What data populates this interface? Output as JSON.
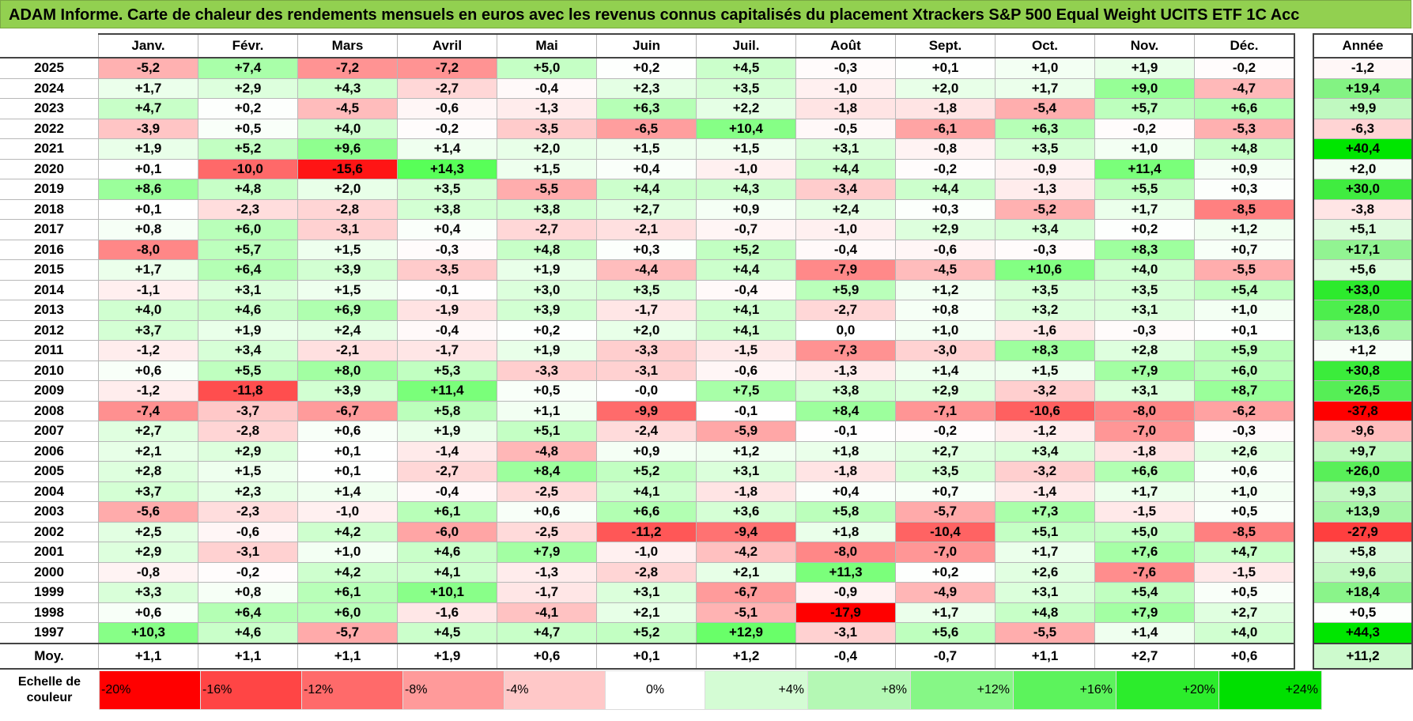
{
  "chart_data": {
    "type": "heatmap",
    "title": "ADAM Informe. Carte de chaleur des rendements mensuels en euros avec les revenus connus capitalisés du placement Xtrackers S&P 500 Equal Weight UCITS ETF 1C Acc",
    "months": [
      "Janv.",
      "Févr.",
      "Mars",
      "Avril",
      "Mai",
      "Juin",
      "Juil.",
      "Août",
      "Sept.",
      "Oct.",
      "Nov.",
      "Déc."
    ],
    "annual_label": "Année",
    "rows": [
      {
        "year": "2025",
        "values": [
          "-5,2",
          "+7,4",
          "-7,2",
          "-7,2",
          "+5,0",
          "+0,2",
          "+4,5",
          "-0,3",
          "+0,1",
          "+1,0",
          "+1,9",
          "-0,2"
        ],
        "annual": "-1,2"
      },
      {
        "year": "2024",
        "values": [
          "+1,7",
          "+2,9",
          "+4,3",
          "-2,7",
          "-0,4",
          "+2,3",
          "+3,5",
          "-1,0",
          "+2,0",
          "+1,7",
          "+9,0",
          "-4,7"
        ],
        "annual": "+19,4"
      },
      {
        "year": "2023",
        "values": [
          "+4,7",
          "+0,2",
          "-4,5",
          "-0,6",
          "-1,3",
          "+6,3",
          "+2,2",
          "-1,8",
          "-1,8",
          "-5,4",
          "+5,7",
          "+6,6"
        ],
        "annual": "+9,9"
      },
      {
        "year": "2022",
        "values": [
          "-3,9",
          "+0,5",
          "+4,0",
          "-0,2",
          "-3,5",
          "-6,5",
          "+10,4",
          "-0,5",
          "-6,1",
          "+6,3",
          "-0,2",
          "-5,3"
        ],
        "annual": "-6,3"
      },
      {
        "year": "2021",
        "values": [
          "+1,9",
          "+5,2",
          "+9,6",
          "+1,4",
          "+2,0",
          "+1,5",
          "+1,5",
          "+3,1",
          "-0,8",
          "+3,5",
          "+1,0",
          "+4,8"
        ],
        "annual": "+40,4"
      },
      {
        "year": "2020",
        "values": [
          "+0,1",
          "-10,0",
          "-15,6",
          "+14,3",
          "+1,5",
          "+0,4",
          "-1,0",
          "+4,4",
          "-0,2",
          "-0,9",
          "+11,4",
          "+0,9"
        ],
        "annual": "+2,0"
      },
      {
        "year": "2019",
        "values": [
          "+8,6",
          "+4,8",
          "+2,0",
          "+3,5",
          "-5,5",
          "+4,4",
          "+4,3",
          "-3,4",
          "+4,4",
          "-1,3",
          "+5,5",
          "+0,3"
        ],
        "annual": "+30,0"
      },
      {
        "year": "2018",
        "values": [
          "+0,1",
          "-2,3",
          "-2,8",
          "+3,8",
          "+3,8",
          "+2,7",
          "+0,9",
          "+2,4",
          "+0,3",
          "-5,2",
          "+1,7",
          "-8,5"
        ],
        "annual": "-3,8"
      },
      {
        "year": "2017",
        "values": [
          "+0,8",
          "+6,0",
          "-3,1",
          "+0,4",
          "-2,7",
          "-2,1",
          "-0,7",
          "-1,0",
          "+2,9",
          "+3,4",
          "+0,2",
          "+1,2"
        ],
        "annual": "+5,1"
      },
      {
        "year": "2016",
        "values": [
          "-8,0",
          "+5,7",
          "+1,5",
          "-0,3",
          "+4,8",
          "+0,3",
          "+5,2",
          "-0,4",
          "-0,6",
          "-0,3",
          "+8,3",
          "+0,7"
        ],
        "annual": "+17,1"
      },
      {
        "year": "2015",
        "values": [
          "+1,7",
          "+6,4",
          "+3,9",
          "-3,5",
          "+1,9",
          "-4,4",
          "+4,4",
          "-7,9",
          "-4,5",
          "+10,6",
          "+4,0",
          "-5,5"
        ],
        "annual": "+5,6"
      },
      {
        "year": "2014",
        "values": [
          "-1,1",
          "+3,1",
          "+1,5",
          "-0,1",
          "+3,0",
          "+3,5",
          "-0,4",
          "+5,9",
          "+1,2",
          "+3,5",
          "+3,5",
          "+5,4"
        ],
        "annual": "+33,0"
      },
      {
        "year": "2013",
        "values": [
          "+4,0",
          "+4,6",
          "+6,9",
          "-1,9",
          "+3,9",
          "-1,7",
          "+4,1",
          "-2,7",
          "+0,8",
          "+3,2",
          "+3,1",
          "+1,0"
        ],
        "annual": "+28,0"
      },
      {
        "year": "2012",
        "values": [
          "+3,7",
          "+1,9",
          "+2,4",
          "-0,4",
          "+0,2",
          "+2,0",
          "+4,1",
          "0,0",
          "+1,0",
          "-1,6",
          "-0,3",
          "+0,1"
        ],
        "annual": "+13,6"
      },
      {
        "year": "2011",
        "values": [
          "-1,2",
          "+3,4",
          "-2,1",
          "-1,7",
          "+1,9",
          "-3,3",
          "-1,5",
          "-7,3",
          "-3,0",
          "+8,3",
          "+2,8",
          "+5,9"
        ],
        "annual": "+1,2"
      },
      {
        "year": "2010",
        "values": [
          "+0,6",
          "+5,5",
          "+8,0",
          "+5,3",
          "-3,3",
          "-3,1",
          "-0,6",
          "-1,3",
          "+1,4",
          "+1,5",
          "+7,9",
          "+6,0"
        ],
        "annual": "+30,8"
      },
      {
        "year": "2009",
        "values": [
          "-1,2",
          "-11,8",
          "+3,9",
          "+11,4",
          "+0,5",
          "-0,0",
          "+7,5",
          "+3,8",
          "+2,9",
          "-3,2",
          "+3,1",
          "+8,7"
        ],
        "annual": "+26,5"
      },
      {
        "year": "2008",
        "values": [
          "-7,4",
          "-3,7",
          "-6,7",
          "+5,8",
          "+1,1",
          "-9,9",
          "-0,1",
          "+8,4",
          "-7,1",
          "-10,6",
          "-8,0",
          "-6,2"
        ],
        "annual": "-37,8"
      },
      {
        "year": "2007",
        "values": [
          "+2,7",
          "-2,8",
          "+0,6",
          "+1,9",
          "+5,1",
          "-2,4",
          "-5,9",
          "-0,1",
          "-0,2",
          "-1,2",
          "-7,0",
          "-0,3"
        ],
        "annual": "-9,6"
      },
      {
        "year": "2006",
        "values": [
          "+2,1",
          "+2,9",
          "+0,1",
          "-1,4",
          "-4,8",
          "+0,9",
          "+1,2",
          "+1,8",
          "+2,7",
          "+3,4",
          "-1,8",
          "+2,6"
        ],
        "annual": "+9,7"
      },
      {
        "year": "2005",
        "values": [
          "+2,8",
          "+1,5",
          "+0,1",
          "-2,7",
          "+8,4",
          "+5,2",
          "+3,1",
          "-1,8",
          "+3,5",
          "-3,2",
          "+6,6",
          "+0,6"
        ],
        "annual": "+26,0"
      },
      {
        "year": "2004",
        "values": [
          "+3,7",
          "+2,3",
          "+1,4",
          "-0,4",
          "-2,5",
          "+4,1",
          "-1,8",
          "+0,4",
          "+0,7",
          "-1,4",
          "+1,7",
          "+1,0"
        ],
        "annual": "+9,3"
      },
      {
        "year": "2003",
        "values": [
          "-5,6",
          "-2,3",
          "-1,0",
          "+6,1",
          "+0,6",
          "+6,6",
          "+3,6",
          "+5,8",
          "-5,7",
          "+7,3",
          "-1,5",
          "+0,5"
        ],
        "annual": "+13,9"
      },
      {
        "year": "2002",
        "values": [
          "+2,5",
          "-0,6",
          "+4,2",
          "-6,0",
          "-2,5",
          "-11,2",
          "-9,4",
          "+1,8",
          "-10,4",
          "+5,1",
          "+5,0",
          "-8,5"
        ],
        "annual": "-27,9"
      },
      {
        "year": "2001",
        "values": [
          "+2,9",
          "-3,1",
          "+1,0",
          "+4,6",
          "+7,9",
          "-1,0",
          "-4,2",
          "-8,0",
          "-7,0",
          "+1,7",
          "+7,6",
          "+4,7"
        ],
        "annual": "+5,8"
      },
      {
        "year": "2000",
        "values": [
          "-0,8",
          "-0,2",
          "+4,2",
          "+4,1",
          "-1,3",
          "-2,8",
          "+2,1",
          "+11,3",
          "+0,2",
          "+2,6",
          "-7,6",
          "-1,5"
        ],
        "annual": "+9,6"
      },
      {
        "year": "1999",
        "values": [
          "+3,3",
          "+0,8",
          "+6,1",
          "+10,1",
          "-1,7",
          "+3,1",
          "-6,7",
          "-0,9",
          "-4,9",
          "+3,1",
          "+5,4",
          "+0,5"
        ],
        "annual": "+18,4"
      },
      {
        "year": "1998",
        "values": [
          "+0,6",
          "+6,4",
          "+6,0",
          "-1,6",
          "-4,1",
          "+2,1",
          "-5,1",
          "-17,9",
          "+1,7",
          "+4,8",
          "+7,9",
          "+2,7"
        ],
        "annual": "+0,5"
      },
      {
        "year": "1997",
        "values": [
          "+10,3",
          "+4,6",
          "-5,7",
          "+4,5",
          "+4,7",
          "+5,2",
          "+12,9",
          "-3,1",
          "+5,6",
          "-5,5",
          "+1,4",
          "+4,0"
        ],
        "annual": "+44,3"
      }
    ],
    "average": {
      "label": "Moy.",
      "values": [
        "+1,1",
        "+1,1",
        "+1,1",
        "+1,9",
        "+0,6",
        "+0,1",
        "+1,2",
        "-0,4",
        "-0,7",
        "+1,1",
        "+2,7",
        "+0,6"
      ],
      "annual": "+11,2"
    },
    "color_scale": {
      "label": "Echelle de couleur",
      "stops": [
        "-20%",
        "-16%",
        "-12%",
        "-8%",
        "-4%",
        "0%",
        "+4%",
        "+8%",
        "+12%",
        "+16%",
        "+20%",
        "+24%"
      ],
      "colors": [
        "#ff0000",
        "#ff4545",
        "#ff6a6a",
        "#ff9a9a",
        "#ffc8c8",
        "#ffffff",
        "#d4fcd4",
        "#b4f8b4",
        "#86f786",
        "#5cf35c",
        "#2cec2c",
        "#00e000"
      ]
    }
  }
}
